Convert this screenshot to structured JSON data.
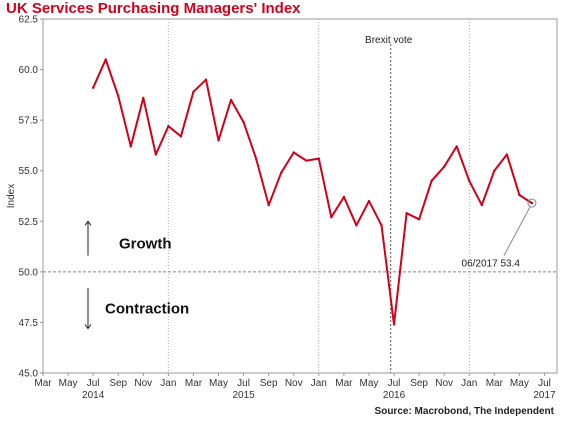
{
  "chart_data": {
    "type": "line",
    "title": "UK Services Purchasing Managers' Index",
    "ylabel": "Index",
    "ylim": [
      45.0,
      62.5
    ],
    "yticks": [
      "45.0",
      "47.5",
      "50.0",
      "52.5",
      "55.0",
      "57.5",
      "60.0",
      "62.5"
    ],
    "xticks": [
      "Mar",
      "May",
      "Jul",
      "Sep",
      "Nov",
      "Jan",
      "Mar",
      "May",
      "Jul",
      "Sep",
      "Nov",
      "Jan",
      "Mar",
      "May",
      "Jul",
      "Sep",
      "Nov",
      "Jan",
      "Mar",
      "May",
      "Jul"
    ],
    "years": [
      {
        "label": "2014",
        "tick_index": 2
      },
      {
        "label": "2015",
        "tick_index": 8
      },
      {
        "label": "2016",
        "tick_index": 14
      },
      {
        "label": "2017",
        "tick_index": 20
      }
    ],
    "x_range": [
      "2014-03",
      "2017-08"
    ],
    "grid": "vertical dotted lines at each January; dashed reference line at 50.0",
    "series": [
      {
        "name": "",
        "color": "#d0021b",
        "points": [
          [
            "2014-07",
            59.1
          ],
          [
            "2014-08",
            60.5
          ],
          [
            "2014-09",
            58.7
          ],
          [
            "2014-10",
            56.2
          ],
          [
            "2014-11",
            58.6
          ],
          [
            "2014-12",
            55.8
          ],
          [
            "2015-01",
            57.2
          ],
          [
            "2015-02",
            56.7
          ],
          [
            "2015-03",
            58.9
          ],
          [
            "2015-04",
            59.5
          ],
          [
            "2015-05",
            56.5
          ],
          [
            "2015-06",
            58.5
          ],
          [
            "2015-07",
            57.4
          ],
          [
            "2015-08",
            55.6
          ],
          [
            "2015-09",
            53.3
          ],
          [
            "2015-10",
            54.9
          ],
          [
            "2015-11",
            55.9
          ],
          [
            "2015-12",
            55.5
          ],
          [
            "2016-01",
            55.6
          ],
          [
            "2016-02",
            52.7
          ],
          [
            "2016-03",
            53.7
          ],
          [
            "2016-04",
            52.3
          ],
          [
            "2016-05",
            53.5
          ],
          [
            "2016-06",
            52.3
          ],
          [
            "2016-07",
            47.4
          ],
          [
            "2016-08",
            52.9
          ],
          [
            "2016-09",
            52.6
          ],
          [
            "2016-10",
            54.5
          ],
          [
            "2016-11",
            55.2
          ],
          [
            "2016-12",
            56.2
          ],
          [
            "2017-01",
            54.5
          ],
          [
            "2017-02",
            53.3
          ],
          [
            "2017-03",
            55.0
          ],
          [
            "2017-04",
            55.8
          ],
          [
            "2017-05",
            53.8
          ],
          [
            "2017-06",
            53.4
          ]
        ]
      }
    ],
    "reference_line": {
      "y": 50.0
    },
    "annotations": {
      "brexit": {
        "x": "2016-06-23",
        "label": "Brexit vote"
      },
      "latest": {
        "x": "2017-06",
        "y": 53.4,
        "label": "06/2017 53.4"
      },
      "growth": "Growth",
      "contraction": "Contraction"
    },
    "source": "Source: Macrobond, The Independent"
  }
}
